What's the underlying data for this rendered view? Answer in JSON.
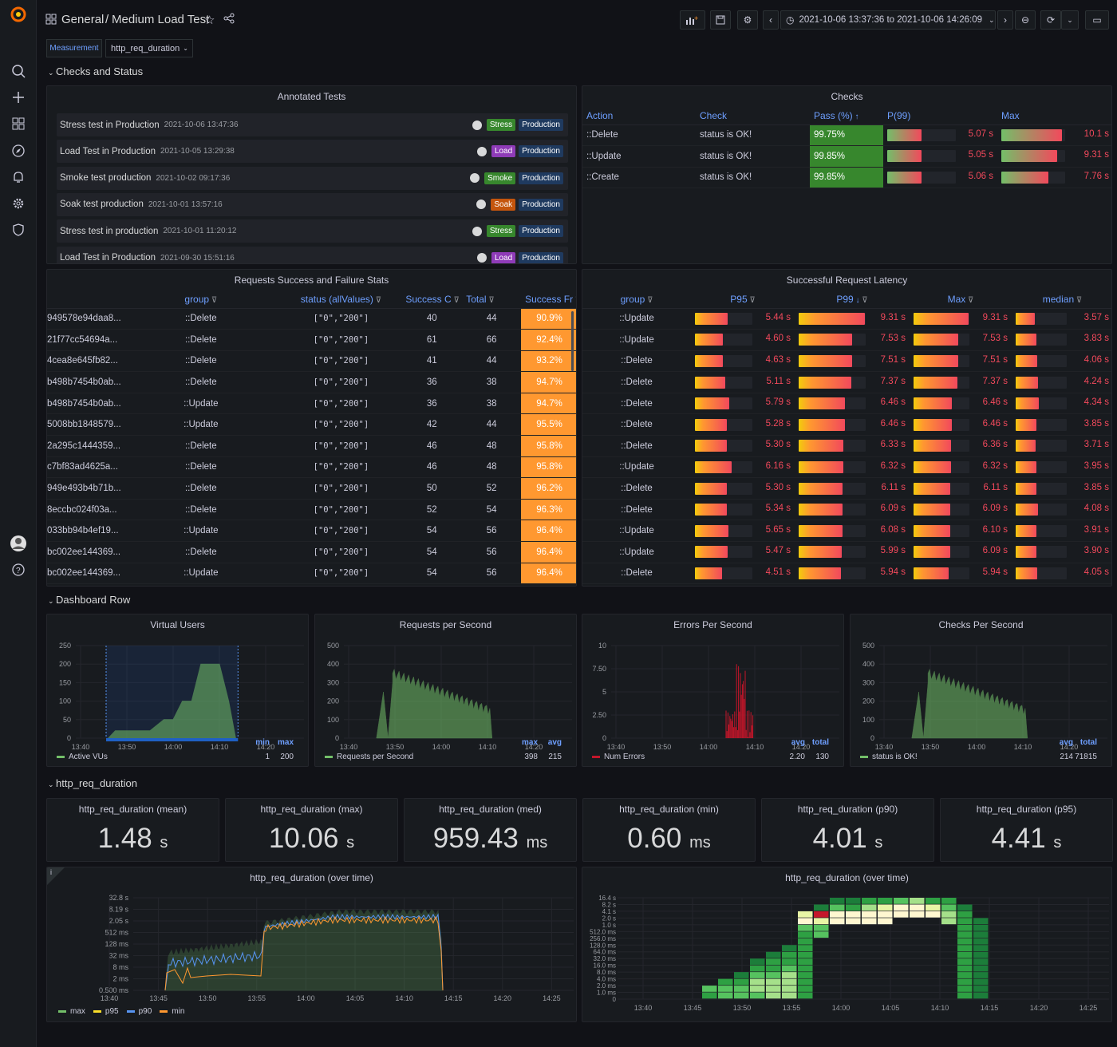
{
  "topbar": {
    "folder": "General",
    "title": "Medium Load Test",
    "time_range": "2021-10-06 13:37:36 to 2021-10-06 14:26:09"
  },
  "variables": {
    "label": "Measurement",
    "value": "http_req_duration"
  },
  "rows": {
    "checks": "Checks and Status",
    "dashboard": "Dashboard Row",
    "http": "http_req_duration"
  },
  "annotated": {
    "title": "Annotated Tests",
    "items": [
      {
        "name": "Stress test in Production",
        "date": "2021-10-06 13:47:36",
        "tag": "Stress",
        "tagcolor": "#37872d",
        "env": "Production"
      },
      {
        "name": "Load Test in Production",
        "date": "2021-10-05 13:29:38",
        "tag": "Load",
        "tagcolor": "#8f3bb8",
        "env": "Production"
      },
      {
        "name": "Smoke test production",
        "date": "2021-10-02 09:17:36",
        "tag": "Smoke",
        "tagcolor": "#37872d",
        "env": "Production"
      },
      {
        "name": "Soak test production",
        "date": "2021-10-01 13:57:16",
        "tag": "Soak",
        "tagcolor": "#c4550d",
        "env": "Production"
      },
      {
        "name": "Stress test in production",
        "date": "2021-10-01 11:20:12",
        "tag": "Stress",
        "tagcolor": "#37872d",
        "env": "Production"
      },
      {
        "name": "Load Test in Production",
        "date": "2021-09-30 15:51:16",
        "tag": "Load",
        "tagcolor": "#8f3bb8",
        "env": "Production"
      }
    ]
  },
  "checks": {
    "title": "Checks",
    "headers": [
      "Action",
      "Check",
      "Pass (%)",
      "P(99)",
      "Max"
    ],
    "rows": [
      {
        "action": "::Delete",
        "check": "status is OK!",
        "pass": "99.75%",
        "p99": "5.07 s",
        "p99v": 0.5,
        "max": "10.1 s",
        "maxv": 0.95
      },
      {
        "action": "::Update",
        "check": "status is OK!",
        "pass": "99.85%",
        "p99": "5.05 s",
        "p99v": 0.5,
        "max": "9.31 s",
        "maxv": 0.88
      },
      {
        "action": "::Create",
        "check": "status is OK!",
        "pass": "99.85%",
        "p99": "5.06 s",
        "p99v": 0.5,
        "max": "7.76 s",
        "maxv": 0.74
      }
    ]
  },
  "reqstats": {
    "title": "Requests Success and Failure Stats",
    "headers": [
      "group",
      "status (allValues)",
      "Success C",
      "Total",
      "Success Fr"
    ],
    "rows": [
      {
        "id": "949578e94daa8...",
        "group": "::Delete",
        "status": "[\"0\",\"200\"]",
        "success": "40",
        "total": "44",
        "frac": "90.9%"
      },
      {
        "id": "21f77cc54694a...",
        "group": "::Delete",
        "status": "[\"0\",\"200\"]",
        "success": "61",
        "total": "66",
        "frac": "92.4%"
      },
      {
        "id": "4cea8e645fb82...",
        "group": "::Delete",
        "status": "[\"0\",\"200\"]",
        "success": "41",
        "total": "44",
        "frac": "93.2%"
      },
      {
        "id": "b498b7454b0ab...",
        "group": "::Delete",
        "status": "[\"0\",\"200\"]",
        "success": "36",
        "total": "38",
        "frac": "94.7%"
      },
      {
        "id": "b498b7454b0ab...",
        "group": "::Update",
        "status": "[\"0\",\"200\"]",
        "success": "36",
        "total": "38",
        "frac": "94.7%"
      },
      {
        "id": "5008bb1848579...",
        "group": "::Update",
        "status": "[\"0\",\"200\"]",
        "success": "42",
        "total": "44",
        "frac": "95.5%"
      },
      {
        "id": "2a295c1444359...",
        "group": "::Delete",
        "status": "[\"0\",\"200\"]",
        "success": "46",
        "total": "48",
        "frac": "95.8%"
      },
      {
        "id": "c7bf83ad4625a...",
        "group": "::Delete",
        "status": "[\"0\",\"200\"]",
        "success": "46",
        "total": "48",
        "frac": "95.8%"
      },
      {
        "id": "949e493b4b71b...",
        "group": "::Delete",
        "status": "[\"0\",\"200\"]",
        "success": "50",
        "total": "52",
        "frac": "96.2%"
      },
      {
        "id": "8eccbc024f03a...",
        "group": "::Delete",
        "status": "[\"0\",\"200\"]",
        "success": "52",
        "total": "54",
        "frac": "96.3%"
      },
      {
        "id": "033bb94b4ef19...",
        "group": "::Update",
        "status": "[\"0\",\"200\"]",
        "success": "54",
        "total": "56",
        "frac": "96.4%"
      },
      {
        "id": "bc002ee144369...",
        "group": "::Delete",
        "status": "[\"0\",\"200\"]",
        "success": "54",
        "total": "56",
        "frac": "96.4%"
      },
      {
        "id": "bc002ee144369...",
        "group": "::Update",
        "status": "[\"0\",\"200\"]",
        "success": "54",
        "total": "56",
        "frac": "96.4%"
      }
    ]
  },
  "latency": {
    "title": "Successful Request Latency",
    "headers": [
      "group",
      "P95",
      "P99",
      "Max",
      "median"
    ],
    "rows": [
      {
        "group": "::Update",
        "p95": "5.44 s",
        "p95v": 0.57,
        "p99": "9.31 s",
        "p99v": 0.99,
        "max": "9.31 s",
        "maxv": 0.99,
        "med": "3.57 s",
        "medv": 0.37
      },
      {
        "group": "::Update",
        "p95": "4.60 s",
        "p95v": 0.48,
        "p99": "7.53 s",
        "p99v": 0.8,
        "max": "7.53 s",
        "maxv": 0.8,
        "med": "3.83 s",
        "medv": 0.4
      },
      {
        "group": "::Delete",
        "p95": "4.63 s",
        "p95v": 0.48,
        "p99": "7.51 s",
        "p99v": 0.8,
        "max": "7.51 s",
        "maxv": 0.8,
        "med": "4.06 s",
        "medv": 0.42
      },
      {
        "group": "::Delete",
        "p95": "5.11 s",
        "p95v": 0.53,
        "p99": "7.37 s",
        "p99v": 0.78,
        "max": "7.37 s",
        "maxv": 0.78,
        "med": "4.24 s",
        "medv": 0.44
      },
      {
        "group": "::Delete",
        "p95": "5.79 s",
        "p95v": 0.6,
        "p99": "6.46 s",
        "p99v": 0.69,
        "max": "6.46 s",
        "maxv": 0.69,
        "med": "4.34 s",
        "medv": 0.45
      },
      {
        "group": "::Delete",
        "p95": "5.28 s",
        "p95v": 0.55,
        "p99": "6.46 s",
        "p99v": 0.69,
        "max": "6.46 s",
        "maxv": 0.69,
        "med": "3.85 s",
        "medv": 0.4
      },
      {
        "group": "::Delete",
        "p95": "5.30 s",
        "p95v": 0.55,
        "p99": "6.33 s",
        "p99v": 0.67,
        "max": "6.36 s",
        "maxv": 0.67,
        "med": "3.71 s",
        "medv": 0.39
      },
      {
        "group": "::Update",
        "p95": "6.16 s",
        "p95v": 0.64,
        "p99": "6.32 s",
        "p99v": 0.67,
        "max": "6.32 s",
        "maxv": 0.67,
        "med": "3.95 s",
        "medv": 0.41
      },
      {
        "group": "::Delete",
        "p95": "5.30 s",
        "p95v": 0.55,
        "p99": "6.11 s",
        "p99v": 0.65,
        "max": "6.11 s",
        "maxv": 0.65,
        "med": "3.85 s",
        "medv": 0.4
      },
      {
        "group": "::Delete",
        "p95": "5.34 s",
        "p95v": 0.55,
        "p99": "6.09 s",
        "p99v": 0.65,
        "max": "6.09 s",
        "maxv": 0.65,
        "med": "4.08 s",
        "medv": 0.43
      },
      {
        "group": "::Update",
        "p95": "5.65 s",
        "p95v": 0.59,
        "p99": "6.08 s",
        "p99v": 0.65,
        "max": "6.10 s",
        "maxv": 0.65,
        "med": "3.91 s",
        "medv": 0.41
      },
      {
        "group": "::Update",
        "p95": "5.47 s",
        "p95v": 0.57,
        "p99": "5.99 s",
        "p99v": 0.64,
        "max": "6.09 s",
        "maxv": 0.65,
        "med": "3.90 s",
        "medv": 0.41
      },
      {
        "group": "::Delete",
        "p95": "4.51 s",
        "p95v": 0.47,
        "p99": "5.94 s",
        "p99v": 0.63,
        "max": "5.94 s",
        "maxv": 0.63,
        "med": "4.05 s",
        "medv": 0.42
      }
    ]
  },
  "graphs": [
    {
      "title": "Virtual Users",
      "legend": "Active VUs",
      "color": "#73bf69",
      "cols": [
        "min",
        "max"
      ],
      "vals": [
        "1",
        "200"
      ]
    },
    {
      "title": "Requests per Second",
      "legend": "Requests per Second",
      "color": "#73bf69",
      "cols": [
        "max",
        "avg"
      ],
      "vals": [
        "398",
        "215"
      ]
    },
    {
      "title": "Errors Per Second",
      "legend": "Num Errors",
      "color": "#c4162a",
      "cols": [
        "avg",
        "total"
      ],
      "vals": [
        "2.20",
        "130"
      ]
    },
    {
      "title": "Checks Per Second",
      "legend": "status is OK!",
      "color": "#73bf69",
      "cols": [
        "avg",
        "total"
      ],
      "vals": [
        "214",
        "71815"
      ]
    }
  ],
  "stats": [
    {
      "title": "http_req_duration (mean)",
      "value": "1.48",
      "unit": "s"
    },
    {
      "title": "http_req_duration (max)",
      "value": "10.06",
      "unit": "s"
    },
    {
      "title": "http_req_duration (med)",
      "value": "959.43",
      "unit": "ms"
    },
    {
      "title": "http_req_duration (min)",
      "value": "0.60",
      "unit": "ms"
    },
    {
      "title": "http_req_duration (p90)",
      "value": "4.01",
      "unit": "s"
    },
    {
      "title": "http_req_duration (p95)",
      "value": "4.41",
      "unit": "s"
    }
  ],
  "overtime": {
    "title": "http_req_duration (over time)",
    "legend": [
      {
        "name": "max",
        "color": "#73bf69"
      },
      {
        "name": "p95",
        "color": "#fade2a"
      },
      {
        "name": "p90",
        "color": "#5794f2"
      },
      {
        "name": "min",
        "color": "#ff9830"
      }
    ]
  },
  "heatmap": {
    "title": "http_req_duration (over time)"
  },
  "chart_data": [
    {
      "type": "area",
      "title": "Virtual Users",
      "x": [
        "13:40",
        "13:50",
        "14:00",
        "14:10",
        "14:20"
      ],
      "ylim": [
        0,
        250
      ],
      "series": [
        {
          "name": "Active VUs",
          "values": [
            0,
            50,
            100,
            200,
            0
          ]
        }
      ]
    },
    {
      "type": "area",
      "title": "Requests per Second",
      "x": [
        "13:40",
        "13:50",
        "14:00",
        "14:10",
        "14:20"
      ],
      "ylim": [
        0,
        500
      ],
      "series": [
        {
          "name": "Requests per Second",
          "values": [
            0,
            350,
            250,
            180,
            0
          ]
        }
      ]
    },
    {
      "type": "bar",
      "title": "Errors Per Second",
      "x": [
        "13:40",
        "13:50",
        "14:00",
        "14:10",
        "14:20"
      ],
      "ylim": [
        0,
        10
      ],
      "series": [
        {
          "name": "Num Errors",
          "values": [
            0,
            0,
            0,
            8,
            0
          ]
        }
      ]
    },
    {
      "type": "area",
      "title": "Checks Per Second",
      "x": [
        "13:40",
        "13:50",
        "14:00",
        "14:10",
        "14:20"
      ],
      "ylim": [
        0,
        500
      ],
      "series": [
        {
          "name": "status is OK!",
          "values": [
            0,
            350,
            250,
            180,
            0
          ]
        }
      ]
    }
  ]
}
